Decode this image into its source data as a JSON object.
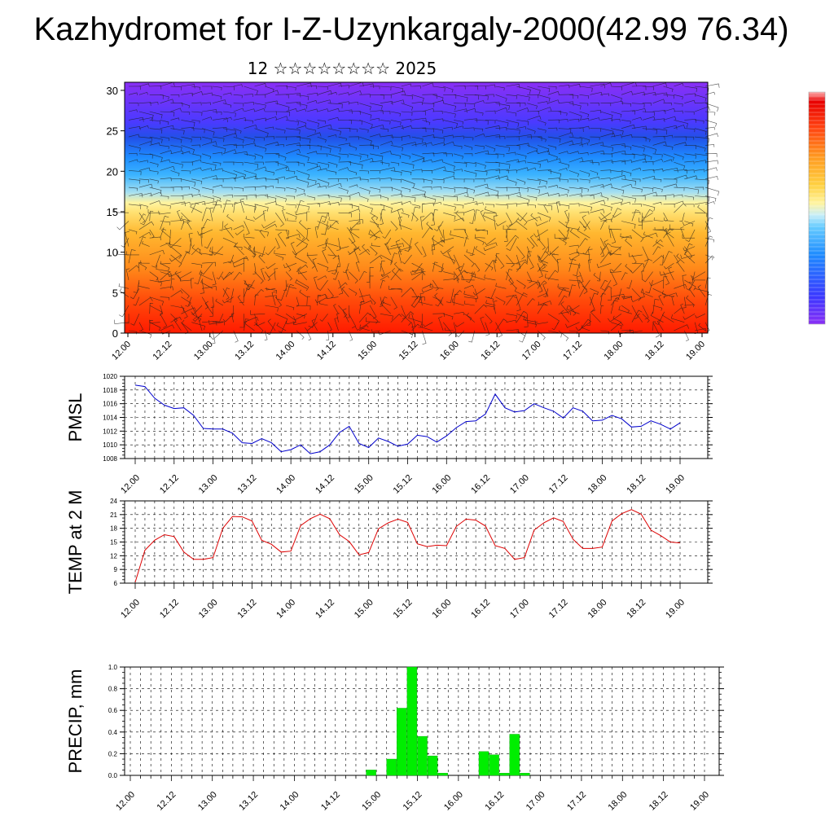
{
  "title": "Kazhydromet for I-Z-Uzynkargaly-2000(42.99 76.34)",
  "subtitle": "12 ☆☆☆☆☆☆☆☆ 2025",
  "chart_data": [
    {
      "type": "heatmap",
      "title": "",
      "x_tick_labels": [
        "12.00",
        "12.12",
        "13.00",
        "13.12",
        "14.00",
        "14.12",
        "15.00",
        "15.12",
        "16.00",
        "16.12",
        "17.00",
        "17.12",
        "18.00",
        "18.12",
        "19.00"
      ],
      "y_tick_labels": [
        "0",
        "5",
        "10",
        "15",
        "20",
        "25",
        "30"
      ],
      "ylim": [
        0,
        31
      ],
      "colorbar": "rainbow (violet-blue-cyan-yellow-orange-red)",
      "overlay": "wind barbs"
    },
    {
      "type": "line",
      "ylabel": "PMSL",
      "x_tick_labels": [
        "12.00",
        "12.12",
        "13.00",
        "13.12",
        "14.00",
        "14.12",
        "15.00",
        "15.12",
        "16.00",
        "16.12",
        "17.00",
        "17.12",
        "18.00",
        "18.12",
        "19.00"
      ],
      "y_tick_labels": [
        "1008",
        "1010",
        "1012",
        "1014",
        "1016",
        "1018",
        "1020"
      ],
      "ylim": [
        1008,
        1020
      ],
      "color": "#0000cc",
      "values": [
        1018.7,
        1018.5,
        1016.8,
        1015.8,
        1015.3,
        1015.4,
        1014.3,
        1012.4,
        1012.3,
        1012.3,
        1011.7,
        1010.3,
        1010.2,
        1010.9,
        1010.3,
        1009.0,
        1009.3,
        1010.0,
        1008.7,
        1009.0,
        1010.0,
        1011.8,
        1012.7,
        1010.2,
        1009.6,
        1011.0,
        1010.5,
        1009.8,
        1010.1,
        1011.4,
        1011.2,
        1010.4,
        1011.3,
        1012.5,
        1013.4,
        1013.5,
        1014.5,
        1017.4,
        1015.4,
        1014.8,
        1015.0,
        1016.0,
        1015.4,
        1014.9,
        1013.9,
        1015.4,
        1014.9,
        1013.5,
        1013.6,
        1014.3,
        1013.8,
        1012.6,
        1012.7,
        1013.5,
        1013.0,
        1012.3,
        1013.2
      ]
    },
    {
      "type": "line",
      "ylabel": "TEMP at 2 M",
      "x_tick_labels": [
        "12.00",
        "12.12",
        "13.00",
        "13.12",
        "14.00",
        "14.12",
        "15.00",
        "15.12",
        "16.00",
        "16.12",
        "17.00",
        "17.12",
        "18.00",
        "18.12",
        "19.00"
      ],
      "y_tick_labels": [
        "6",
        "9",
        "12",
        "15",
        "18",
        "21",
        "24"
      ],
      "ylim": [
        6,
        24
      ],
      "color": "#dd0000",
      "values": [
        6.2,
        13.2,
        15.4,
        16.6,
        16.2,
        12.8,
        11.2,
        11.2,
        11.6,
        18.0,
        20.6,
        20.5,
        19.6,
        15.4,
        14.5,
        12.8,
        13.0,
        18.6,
        20.1,
        21.1,
        20.1,
        16.6,
        15.1,
        12.2,
        12.7,
        17.9,
        19.2,
        20.0,
        19.3,
        14.6,
        14.0,
        14.3,
        14.2,
        18.4,
        20.0,
        19.8,
        18.5,
        14.2,
        13.6,
        11.2,
        11.6,
        17.6,
        19.2,
        20.3,
        19.5,
        15.6,
        13.6,
        13.6,
        13.9,
        19.6,
        21.2,
        22.1,
        21.1,
        17.6,
        16.4,
        15.0,
        14.8
      ]
    },
    {
      "type": "bar",
      "ylabel": "PRECIP, mm",
      "x_tick_labels": [
        "12.00",
        "12.12",
        "13.00",
        "13.12",
        "14.00",
        "14.12",
        "15.00",
        "15.12",
        "16.00",
        "16.12",
        "17.00",
        "17.12",
        "18.00",
        "18.12",
        "19.00"
      ],
      "y_tick_labels": [
        "0.0",
        "0.2",
        "0.4",
        "0.6",
        "0.8",
        "1.0"
      ],
      "ylim": [
        0,
        1.0
      ],
      "color": "#00ee00",
      "values": [
        0,
        0,
        0,
        0,
        0,
        0,
        0,
        0,
        0,
        0,
        0,
        0,
        0,
        0,
        0,
        0,
        0,
        0,
        0,
        0,
        0,
        0,
        0,
        0.05,
        0,
        0.15,
        0.62,
        1.0,
        0.36,
        0.18,
        0.02,
        0,
        0,
        0,
        0.22,
        0.19,
        0.02,
        0.38,
        0.02,
        0,
        0,
        0,
        0,
        0,
        0,
        0,
        0,
        0,
        0,
        0,
        0,
        0,
        0,
        0,
        0,
        0
      ]
    }
  ]
}
